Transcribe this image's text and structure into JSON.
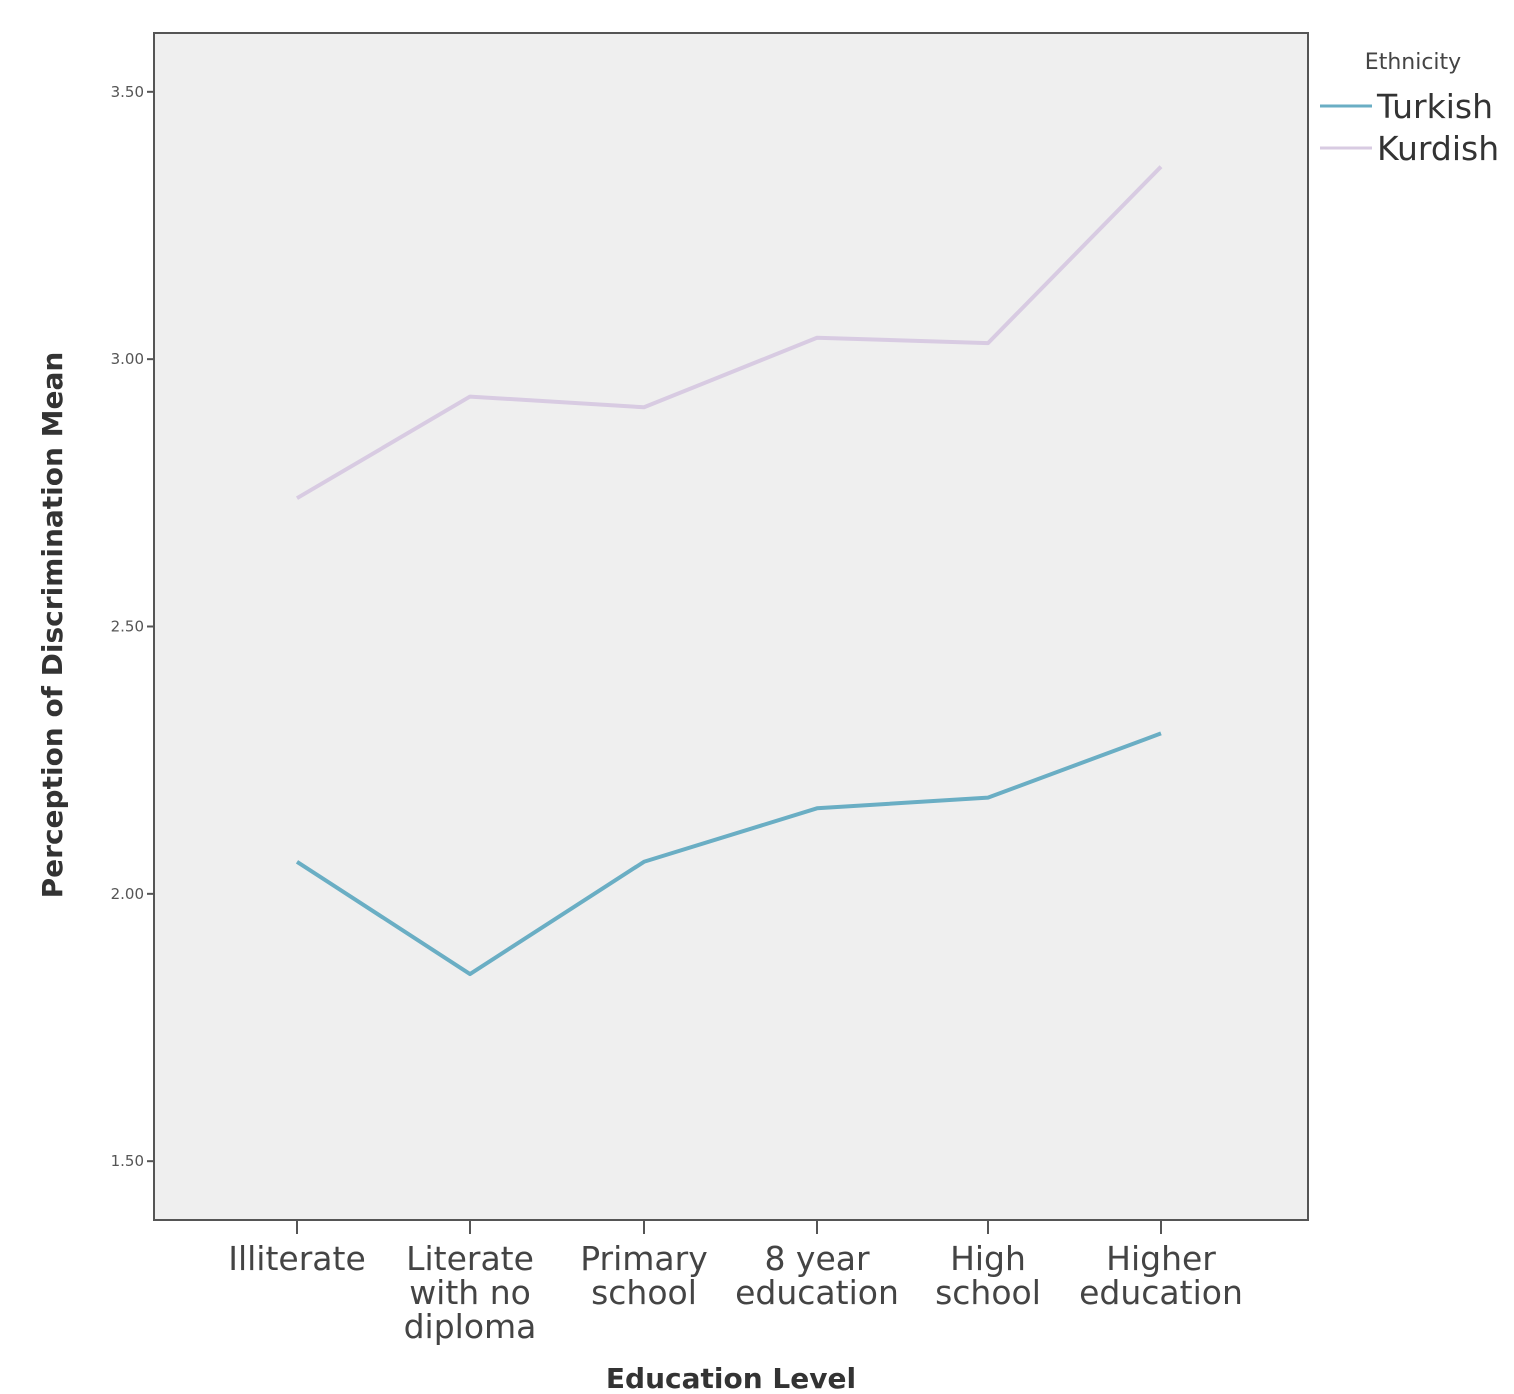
{
  "chart_data": {
    "type": "line",
    "xlabel": "Education Level",
    "ylabel": "Perception of Discrimination Mean",
    "categories": [
      [
        "Illiterate"
      ],
      [
        "Literate",
        "with no",
        "diploma"
      ],
      [
        "Primary",
        "school"
      ],
      [
        "8 year",
        "education"
      ],
      [
        "High",
        "school"
      ],
      [
        "Higher",
        "education"
      ]
    ],
    "ylim": [
      1.39,
      3.61
    ],
    "yticks": [
      1.5,
      2.0,
      2.5,
      3.0,
      3.5
    ],
    "ytick_labels": [
      "1.50",
      "2.00",
      "2.50",
      "3.00",
      "3.50"
    ],
    "grid": false,
    "legend": {
      "title": "Ethnicity",
      "position": "top-right, outside plot"
    },
    "series": [
      {
        "name": "Turkish",
        "color": "#6aaec4",
        "values": [
          2.06,
          1.85,
          2.06,
          2.16,
          2.18,
          2.3
        ]
      },
      {
        "name": "Kurdish",
        "color": "#d8cbe2",
        "values": [
          2.74,
          2.93,
          2.91,
          3.04,
          3.03,
          3.36
        ]
      }
    ],
    "plot_background": "#efefef"
  }
}
